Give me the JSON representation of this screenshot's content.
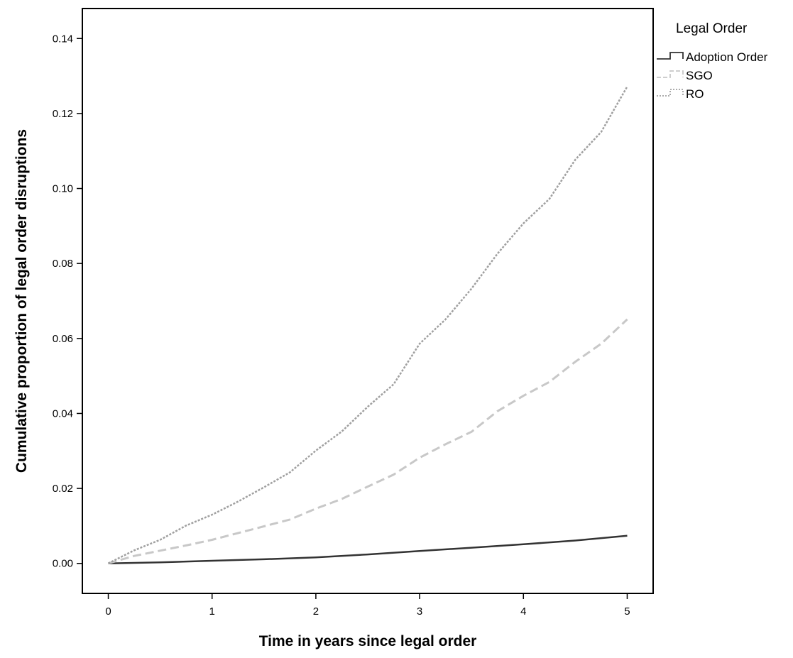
{
  "chart_data": {
    "type": "line",
    "title": "",
    "xlabel": "Time in years since legal order",
    "ylabel": "Cumulative proportion of legal order disruptions",
    "xlim": [
      -0.25,
      5.25
    ],
    "ylim": [
      -0.008,
      0.148
    ],
    "x_ticks": [
      0,
      1,
      2,
      3,
      4,
      5
    ],
    "x_tick_labels": [
      "0",
      "1",
      "2",
      "3",
      "4",
      "5"
    ],
    "y_ticks": [
      0.0,
      0.02,
      0.04,
      0.06,
      0.08,
      0.1,
      0.12,
      0.14
    ],
    "y_tick_labels": [
      "0.00",
      "0.02",
      "0.04",
      "0.06",
      "0.08",
      "0.10",
      "0.12",
      "0.14"
    ],
    "grid": false,
    "legend": {
      "title": "Legal Order",
      "position": "outside-right"
    },
    "series": [
      {
        "name": "Adoption Order",
        "color": "#333333",
        "style": "solid",
        "x": [
          0,
          0.5,
          1,
          1.5,
          2,
          2.5,
          3,
          3.5,
          4,
          4.5,
          5
        ],
        "values": [
          0.0,
          0.0003,
          0.0007,
          0.0011,
          0.0016,
          0.0024,
          0.0033,
          0.0042,
          0.0051,
          0.0061,
          0.0074
        ]
      },
      {
        "name": "SGO",
        "color": "#c8c8c8",
        "style": "dashed",
        "x": [
          0,
          0.25,
          0.5,
          0.75,
          1,
          1.25,
          1.5,
          1.75,
          2,
          2.25,
          2.5,
          2.75,
          3,
          3.25,
          3.5,
          3.75,
          4,
          4.25,
          4.5,
          4.75,
          5
        ],
        "values": [
          0.0,
          0.002,
          0.0034,
          0.0048,
          0.0063,
          0.0081,
          0.0099,
          0.0117,
          0.0146,
          0.0172,
          0.0205,
          0.0237,
          0.0282,
          0.0318,
          0.0351,
          0.0406,
          0.0447,
          0.0484,
          0.0538,
          0.0586,
          0.0651
        ]
      },
      {
        "name": "RO",
        "color": "#a0a0a0",
        "style": "dotted",
        "x": [
          0,
          0.25,
          0.5,
          0.75,
          1,
          1.25,
          1.5,
          1.75,
          2,
          2.25,
          2.5,
          2.75,
          3,
          3.25,
          3.5,
          3.75,
          4,
          4.25,
          4.5,
          4.75,
          5
        ],
        "values": [
          0.0,
          0.0035,
          0.0063,
          0.0101,
          0.013,
          0.0165,
          0.0203,
          0.0243,
          0.0301,
          0.0352,
          0.0418,
          0.0478,
          0.0586,
          0.0651,
          0.0733,
          0.0826,
          0.0907,
          0.0972,
          0.1077,
          0.1151,
          0.1272
        ]
      }
    ]
  }
}
